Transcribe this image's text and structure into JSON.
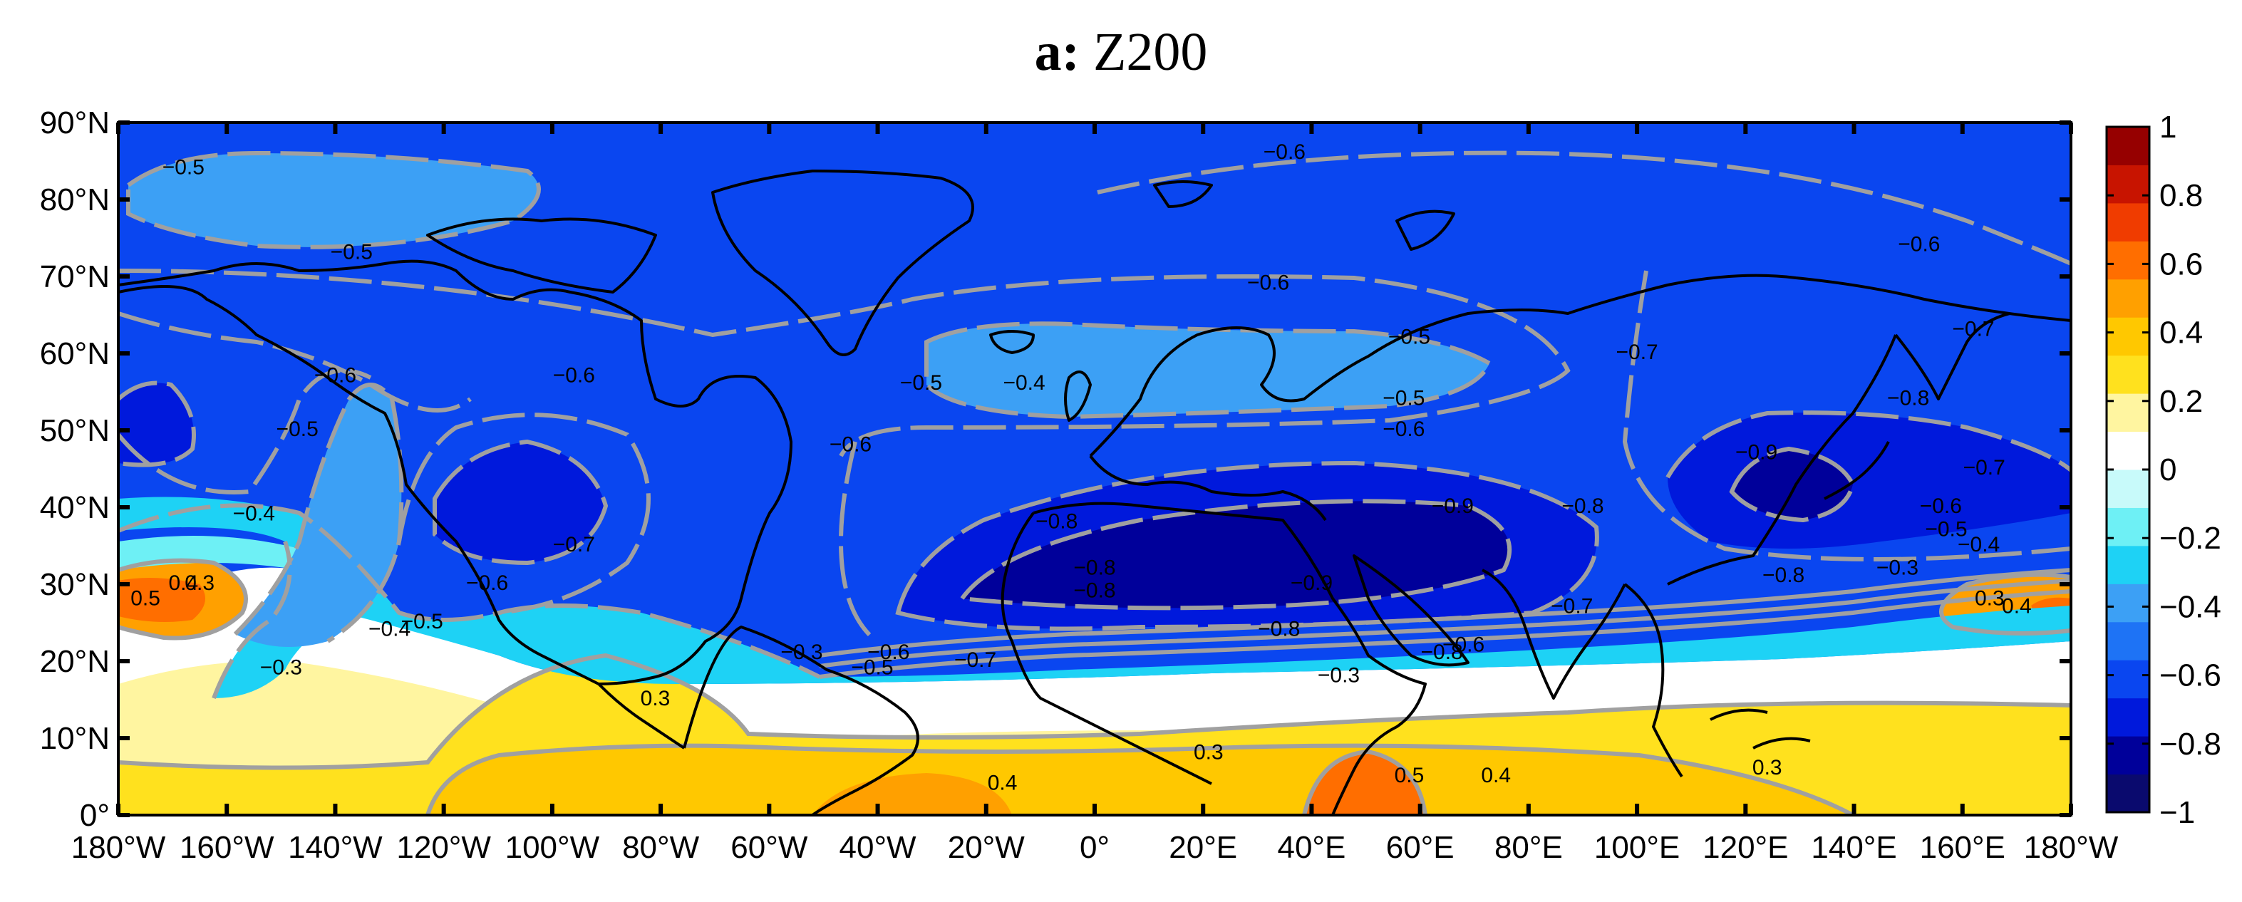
{
  "title": {
    "panel": "a:",
    "variable": "Z200"
  },
  "map": {
    "projection": "cylindrical-equidistant",
    "lon_range": [
      -180,
      180
    ],
    "lat_range": [
      0,
      90
    ],
    "lat_labels": [
      "0°",
      "10°N",
      "20°N",
      "30°N",
      "40°N",
      "50°N",
      "60°N",
      "70°N",
      "80°N",
      "90°N"
    ],
    "lon_labels": [
      "180°W",
      "160°W",
      "140°W",
      "120°W",
      "100°W",
      "80°W",
      "60°W",
      "40°W",
      "20°W",
      "0°",
      "20°E",
      "40°E",
      "60°E",
      "80°E",
      "100°E",
      "120°E",
      "140°E",
      "160°E",
      "180°W"
    ],
    "coastlines": true,
    "contour_line_color": "#a0a0a0",
    "negative_contours_dashed": true
  },
  "colorbar": {
    "ticks": [
      "1",
      "0.8",
      "0.6",
      "0.4",
      "0.2",
      "0",
      "−0.2",
      "−0.4",
      "−0.6",
      "−0.8",
      "−1"
    ],
    "range": [
      -1,
      1
    ],
    "colors": [
      "#0a0a6e",
      "#00009a",
      "#0019dc",
      "#0a46f0",
      "#1e73f5",
      "#3ca0f5",
      "#1ed2f5",
      "#6ef0f5",
      "#c8fafa",
      "#ffffff",
      "#fff5a0",
      "#ffe11e",
      "#ffc800",
      "#ffa000",
      "#ff6e00",
      "#f03c00",
      "#c81400",
      "#960000"
    ]
  },
  "contour_labels": [
    {
      "text": "−0.5",
      "lon": -168,
      "lat": 84
    },
    {
      "text": "−0.5",
      "lon": -137,
      "lat": 73
    },
    {
      "text": "−0.6",
      "lon": 35,
      "lat": 86
    },
    {
      "text": "−0.6",
      "lon": 152,
      "lat": 74
    },
    {
      "text": "−0.6",
      "lon": 32,
      "lat": 69
    },
    {
      "text": "−0.5",
      "lon": 58,
      "lat": 62
    },
    {
      "text": "−0.4",
      "lon": -13,
      "lat": 56
    },
    {
      "text": "−0.5",
      "lon": -32,
      "lat": 56
    },
    {
      "text": "−0.5",
      "lon": 57,
      "lat": 54
    },
    {
      "text": "−0.6",
      "lon": 57,
      "lat": 50
    },
    {
      "text": "−0.6",
      "lon": -45,
      "lat": 48
    },
    {
      "text": "−0.6",
      "lon": -96,
      "lat": 57
    },
    {
      "text": "−0.6",
      "lon": -140,
      "lat": 57
    },
    {
      "text": "−0.5",
      "lon": -147,
      "lat": 50
    },
    {
      "text": "−0.7",
      "lon": 100,
      "lat": 60
    },
    {
      "text": "−0.7",
      "lon": 162,
      "lat": 63
    },
    {
      "text": "−0.8",
      "lon": 150,
      "lat": 54
    },
    {
      "text": "−0.9",
      "lon": 122,
      "lat": 47
    },
    {
      "text": "−0.7",
      "lon": 164,
      "lat": 45
    },
    {
      "text": "−0.6",
      "lon": 156,
      "lat": 40
    },
    {
      "text": "−0.5",
      "lon": 157,
      "lat": 37
    },
    {
      "text": "−0.4",
      "lon": 163,
      "lat": 35
    },
    {
      "text": "−0.3",
      "lon": 148,
      "lat": 32
    },
    {
      "text": "−0.8",
      "lon": 127,
      "lat": 31
    },
    {
      "text": "−0.7",
      "lon": -96,
      "lat": 35
    },
    {
      "text": "−0.6",
      "lon": -112,
      "lat": 30
    },
    {
      "text": "−0.4",
      "lon": -155,
      "lat": 39
    },
    {
      "text": "−0.5",
      "lon": -124,
      "lat": 25
    },
    {
      "text": "−0.4",
      "lon": -130,
      "lat": 24
    },
    {
      "text": "−0.3",
      "lon": -150,
      "lat": 19
    },
    {
      "text": "−0.3",
      "lon": -54,
      "lat": 21
    },
    {
      "text": "−0.5",
      "lon": -41,
      "lat": 19
    },
    {
      "text": "−0.6",
      "lon": -38,
      "lat": 21
    },
    {
      "text": "−0.7",
      "lon": -22,
      "lat": 20
    },
    {
      "text": "−0.8",
      "lon": -7,
      "lat": 38
    },
    {
      "text": "−0.8",
      "lon": 0,
      "lat": 32
    },
    {
      "text": "−0.8",
      "lon": 0,
      "lat": 29
    },
    {
      "text": "−0.9",
      "lon": 40,
      "lat": 30
    },
    {
      "text": "−0.8",
      "lon": 34,
      "lat": 24
    },
    {
      "text": "−0.9",
      "lon": 66,
      "lat": 40
    },
    {
      "text": "−0.8",
      "lon": 90,
      "lat": 40
    },
    {
      "text": "−0.7",
      "lon": 88,
      "lat": 27
    },
    {
      "text": "−0.6",
      "lon": 68,
      "lat": 22
    },
    {
      "text": "−0.3",
      "lon": 45,
      "lat": 18
    },
    {
      "text": "−0.8",
      "lon": 64,
      "lat": 21
    },
    {
      "text": "0.5",
      "lon": -175,
      "lat": 28
    },
    {
      "text": "0.4",
      "lon": -168,
      "lat": 30
    },
    {
      "text": "0.3",
      "lon": -165,
      "lat": 30
    },
    {
      "text": "0.3",
      "lon": -81,
      "lat": 15
    },
    {
      "text": "0.3",
      "lon": 21,
      "lat": 8
    },
    {
      "text": "0.4",
      "lon": -17,
      "lat": 4
    },
    {
      "text": "0.5",
      "lon": 58,
      "lat": 5
    },
    {
      "text": "0.4",
      "lon": 74,
      "lat": 5
    },
    {
      "text": "0.3",
      "lon": 124,
      "lat": 6
    },
    {
      "text": "0.3",
      "lon": 165,
      "lat": 28
    },
    {
      "text": "0.4",
      "lon": 170,
      "lat": 27
    }
  ]
}
